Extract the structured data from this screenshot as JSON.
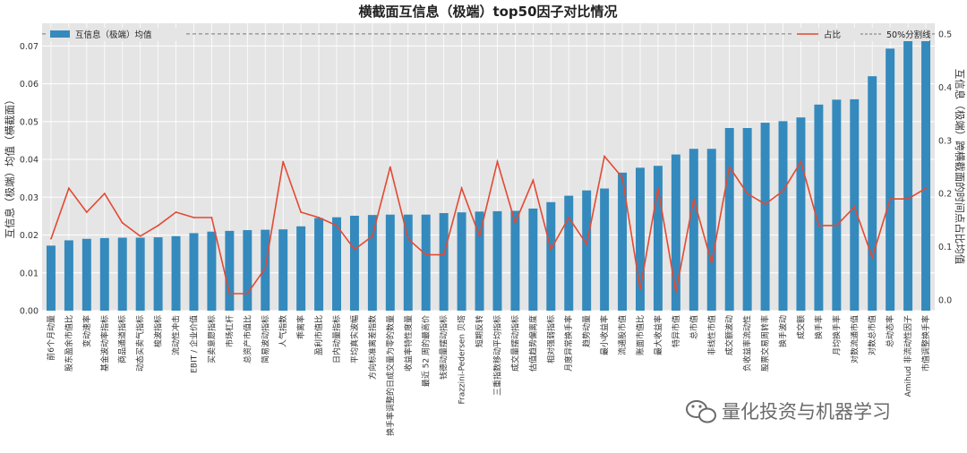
{
  "chart_data": {
    "type": "bar",
    "title": "横截面互信息（极端）top50因子对比情况",
    "ylabel": "互信息（极端）均值（横截面）",
    "ylabel_right": "互信息（极端）跨横截面的时间点占比均值",
    "ylim": [
      0,
      0.076
    ],
    "ylim_right": [
      -0.02,
      0.52
    ],
    "yticks": [
      "0.00",
      "0.01",
      "0.02",
      "0.03",
      "0.04",
      "0.05",
      "0.06",
      "0.07"
    ],
    "yticks_right": [
      "0.0",
      "0.1",
      "0.2",
      "0.3",
      "0.4",
      "0.5"
    ],
    "grid": true,
    "categories": [
      "前6个月动量",
      "股东盈余市值比",
      "变动速率",
      "基金波动率指标",
      "商品通道指标",
      "动态买卖气指标",
      "梭波指标",
      "流动性冲击",
      "EBIT / 企业价值",
      "买卖意愿指标",
      "市场杠杆",
      "总资产市值比",
      "简易波动指标",
      "人气指数",
      "乖离率",
      "盈利市值比",
      "日内动量指标",
      "平均真实波幅",
      "方向标准离差指数",
      "换手率调整的日成交量为零的数量",
      "收益率特性度量",
      "最近 52 周的最高价",
      "钱德动量摆动指标",
      "Frazzini-Pedersen 贝塔",
      "短期反转",
      "三重指数移动平均指标",
      "成交量摆动指标",
      "估值趋势偏离度",
      "相对强弱指标",
      "月度异常换手率",
      "趋势动量",
      "最小收益率",
      "流通股市值",
      "账面市值比",
      "最大收益率",
      "特异市值",
      "总市值",
      "非线性市值",
      "成交额波动",
      "负收益率流动性",
      "股票交易周转率",
      "换手波动",
      "成交额",
      "换手率",
      "月均换手率",
      "对数流通市值",
      "对数总市值",
      "总动态率",
      "Amihud 非流动性因子",
      "市值调整换手率"
    ],
    "series": [
      {
        "name": "互信息（极端）均值",
        "kind": "bar",
        "axis": "left",
        "color": "#348ABD",
        "values": [
          0.0172,
          0.0186,
          0.019,
          0.0192,
          0.0193,
          0.0193,
          0.0194,
          0.0197,
          0.0205,
          0.0209,
          0.0211,
          0.0213,
          0.0214,
          0.0215,
          0.0223,
          0.0245,
          0.0247,
          0.0251,
          0.0253,
          0.0254,
          0.0254,
          0.0254,
          0.0258,
          0.026,
          0.0262,
          0.0263,
          0.0264,
          0.027,
          0.0287,
          0.0304,
          0.0318,
          0.0323,
          0.0365,
          0.0378,
          0.0383,
          0.0413,
          0.0428,
          0.0428,
          0.0483,
          0.0483,
          0.0497,
          0.0501,
          0.0511,
          0.0545,
          0.0558,
          0.0559,
          0.062,
          0.0693,
          0.0715,
          0.0715
        ]
      },
      {
        "name": "占比",
        "kind": "line",
        "axis": "right",
        "color": "#E24A33",
        "values": [
          0.115,
          0.21,
          0.165,
          0.2,
          0.145,
          0.12,
          0.14,
          0.165,
          0.155,
          0.155,
          0.012,
          0.012,
          0.06,
          0.26,
          0.165,
          0.155,
          0.14,
          0.095,
          0.12,
          0.25,
          0.115,
          0.085,
          0.085,
          0.21,
          0.12,
          0.26,
          0.145,
          0.225,
          0.095,
          0.155,
          0.105,
          0.27,
          0.23,
          0.02,
          0.21,
          0.015,
          0.19,
          0.07,
          0.25,
          0.2,
          0.18,
          0.205,
          0.26,
          0.14,
          0.14,
          0.175,
          0.08,
          0.19,
          0.19,
          0.21
        ]
      },
      {
        "name": "50%分割线",
        "kind": "hline",
        "axis": "right",
        "color": "#777777",
        "value": 0.5
      }
    ],
    "legend_left": "互信息（极端）均值",
    "legend_right_line": "占比",
    "legend_right_hline": "50%分割线",
    "legend_placement": "top-left and top-right"
  },
  "watermark": {
    "icon": "wechat-icon",
    "text": "量化投资与机器学习"
  },
  "colors": {
    "plot_bg": "#E5E5E5",
    "grid": "#FFFFFF",
    "bar": "#348ABD",
    "line": "#E24A33"
  }
}
